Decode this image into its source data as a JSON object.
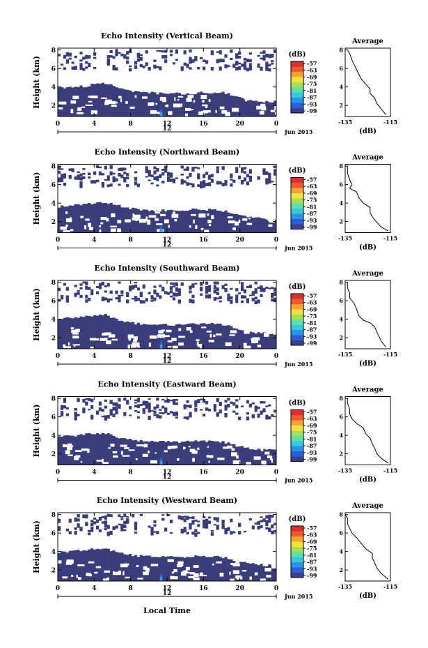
{
  "figure": {
    "x_axis_label": "Local Time",
    "date_label": "Jun 2015",
    "midday_label": "12",
    "colorbar_unit": "(dB)",
    "colorbar_ticks": [
      "-57",
      "-63",
      "-69",
      "-75",
      "-81",
      "-87",
      "-93",
      "-99"
    ],
    "colorbar_colors": [
      "#3b3f8f",
      "#2b5fd8",
      "#2a93e8",
      "#36c8e0",
      "#5fe0a8",
      "#a6e05a",
      "#f2e33c",
      "#f6a431",
      "#ee5a2c",
      "#d8302a"
    ],
    "background_color": "#3a3d7a",
    "side_title": "Average",
    "side_xlabel": "(dB)"
  },
  "chart_data": [
    {
      "type": "heatmap",
      "title": "Echo Intensity (Vertical Beam)",
      "ylabel": "Height (km)",
      "x_ticks": [
        "0",
        "4",
        "8",
        "12",
        "16",
        "20",
        "0"
      ],
      "y_ticks": [
        "2",
        "4",
        "6",
        "8"
      ],
      "xlim": [
        0,
        24
      ],
      "ylim": [
        0.8,
        8.2
      ],
      "echo_top_km": [
        3.9,
        3.9,
        4.0,
        4.1,
        4.3,
        4.4,
        4.2,
        3.8,
        3.5,
        3.4,
        3.4,
        3.3,
        3.3,
        3.3,
        3.3,
        3.3,
        3.4,
        3.4,
        3.4,
        3.2,
        2.8,
        2.6,
        2.5,
        2.4,
        2.4
      ],
      "profile": {
        "xlim": [
          -135,
          -115
        ],
        "x_ticks": [
          "-135",
          "-115"
        ],
        "y_ticks": [
          "2",
          "4",
          "6",
          "8"
        ],
        "points": [
          [
            -117,
            1.0
          ],
          [
            -119,
            1.6
          ],
          [
            -121,
            2.2
          ],
          [
            -122,
            2.8
          ],
          [
            -124,
            3.3
          ],
          [
            -124,
            3.8
          ],
          [
            -126,
            4.3
          ],
          [
            -128,
            4.9
          ],
          [
            -129,
            5.4
          ],
          [
            -130,
            5.9
          ],
          [
            -131,
            6.4
          ],
          [
            -132,
            6.9
          ],
          [
            -133,
            7.6
          ],
          [
            -134,
            8.0
          ]
        ]
      }
    },
    {
      "type": "heatmap",
      "title": "Echo Intensity (Northward Beam)",
      "ylabel": "Height (km)",
      "x_ticks": [
        "0",
        "4",
        "8",
        "12",
        "16",
        "20",
        "0"
      ],
      "y_ticks": [
        "2",
        "4",
        "6",
        "8"
      ],
      "xlim": [
        0,
        24
      ],
      "ylim": [
        0.8,
        8.2
      ],
      "echo_top_km": [
        3.6,
        3.7,
        3.8,
        3.9,
        4.0,
        4.1,
        3.9,
        3.6,
        3.4,
        3.3,
        3.2,
        3.2,
        3.2,
        3.2,
        3.2,
        3.3,
        3.3,
        3.3,
        3.2,
        3.0,
        2.7,
        2.5,
        2.4,
        2.3,
        2.3
      ],
      "profile": {
        "xlim": [
          -135,
          -115
        ],
        "x_ticks": [
          "-135",
          "-115"
        ],
        "y_ticks": [
          "2",
          "4",
          "6",
          "8"
        ],
        "points": [
          [
            -116,
            1.0
          ],
          [
            -119,
            1.4
          ],
          [
            -121,
            1.9
          ],
          [
            -123,
            2.5
          ],
          [
            -124,
            3.0
          ],
          [
            -124,
            3.5
          ],
          [
            -127,
            4.0
          ],
          [
            -129,
            4.6
          ],
          [
            -130,
            5.2
          ],
          [
            -133,
            5.6
          ],
          [
            -132,
            6.0
          ],
          [
            -133,
            6.5
          ],
          [
            -134,
            7.2
          ],
          [
            -134,
            8.0
          ]
        ]
      }
    },
    {
      "type": "heatmap",
      "title": "Echo Intensity (Southward Beam)",
      "ylabel": "Height (km)",
      "x_ticks": [
        "0",
        "4",
        "8",
        "12",
        "16",
        "20",
        "0"
      ],
      "y_ticks": [
        "2",
        "4",
        "6",
        "8"
      ],
      "xlim": [
        0,
        24
      ],
      "ylim": [
        0.8,
        8.2
      ],
      "echo_top_km": [
        4.0,
        4.1,
        4.2,
        4.3,
        4.4,
        4.5,
        4.2,
        3.8,
        3.6,
        3.5,
        3.5,
        3.4,
        3.4,
        3.4,
        3.4,
        3.5,
        3.5,
        3.5,
        3.4,
        3.2,
        2.9,
        2.7,
        2.6,
        2.5,
        2.5
      ],
      "profile": {
        "xlim": [
          -135,
          -115
        ],
        "x_ticks": [
          "-135",
          "-115"
        ],
        "y_ticks": [
          "2",
          "4",
          "6",
          "8"
        ],
        "points": [
          [
            -117,
            1.0
          ],
          [
            -119,
            1.6
          ],
          [
            -120,
            2.1
          ],
          [
            -121,
            2.6
          ],
          [
            -122,
            3.2
          ],
          [
            -124,
            3.6
          ],
          [
            -127,
            3.9
          ],
          [
            -129,
            4.4
          ],
          [
            -130,
            5.1
          ],
          [
            -131,
            5.7
          ],
          [
            -133,
            6.3
          ],
          [
            -133,
            6.8
          ],
          [
            -134,
            7.4
          ],
          [
            -134,
            8.0
          ]
        ]
      }
    },
    {
      "type": "heatmap",
      "title": "Echo Intensity (Eastward Beam)",
      "ylabel": "Height (km)",
      "x_ticks": [
        "0",
        "4",
        "8",
        "12",
        "16",
        "20",
        "0"
      ],
      "y_ticks": [
        "2",
        "4",
        "6",
        "8"
      ],
      "xlim": [
        0,
        24
      ],
      "ylim": [
        0.8,
        8.2
      ],
      "echo_top_km": [
        3.8,
        3.9,
        4.0,
        4.1,
        4.2,
        4.2,
        4.0,
        3.7,
        3.5,
        3.4,
        3.4,
        3.3,
        3.3,
        3.3,
        3.3,
        3.4,
        3.4,
        3.4,
        3.3,
        3.1,
        2.8,
        2.6,
        2.5,
        2.4,
        2.4
      ],
      "profile": {
        "xlim": [
          -135,
          -115
        ],
        "x_ticks": [
          "-135",
          "-115"
        ],
        "y_ticks": [
          "2",
          "4",
          "6",
          "8"
        ],
        "points": [
          [
            -116,
            1.0
          ],
          [
            -119,
            1.5
          ],
          [
            -121,
            2.0
          ],
          [
            -122,
            2.6
          ],
          [
            -123,
            3.1
          ],
          [
            -124,
            3.7
          ],
          [
            -126,
            4.2
          ],
          [
            -127,
            4.8
          ],
          [
            -130,
            5.3
          ],
          [
            -132,
            5.8
          ],
          [
            -133,
            6.3
          ],
          [
            -133,
            6.8
          ],
          [
            -134,
            7.5
          ],
          [
            -134,
            8.0
          ]
        ]
      }
    },
    {
      "type": "heatmap",
      "title": "Echo Intensity (Westward Beam)",
      "ylabel": "Height (km)",
      "x_ticks": [
        "0",
        "4",
        "8",
        "12",
        "16",
        "20",
        "0"
      ],
      "y_ticks": [
        "2",
        "4",
        "6",
        "8"
      ],
      "xlim": [
        0,
        24
      ],
      "ylim": [
        0.8,
        8.2
      ],
      "echo_top_km": [
        3.9,
        4.0,
        4.1,
        4.2,
        4.3,
        4.3,
        4.1,
        3.8,
        3.6,
        3.5,
        3.5,
        3.4,
        3.4,
        3.4,
        3.4,
        3.5,
        3.5,
        3.5,
        3.4,
        3.2,
        2.9,
        2.7,
        2.6,
        2.5,
        2.5
      ],
      "profile": {
        "xlim": [
          -135,
          -115
        ],
        "x_ticks": [
          "-135",
          "-115"
        ],
        "y_ticks": [
          "2",
          "4",
          "6",
          "8"
        ],
        "points": [
          [
            -116,
            1.0
          ],
          [
            -119,
            1.6
          ],
          [
            -121,
            2.2
          ],
          [
            -122,
            2.8
          ],
          [
            -123,
            3.3
          ],
          [
            -123,
            3.8
          ],
          [
            -126,
            4.3
          ],
          [
            -128,
            4.9
          ],
          [
            -130,
            5.5
          ],
          [
            -132,
            6.0
          ],
          [
            -133,
            6.5
          ],
          [
            -134,
            7.0
          ],
          [
            -134,
            7.6
          ],
          [
            -135,
            8.0
          ]
        ]
      }
    }
  ]
}
